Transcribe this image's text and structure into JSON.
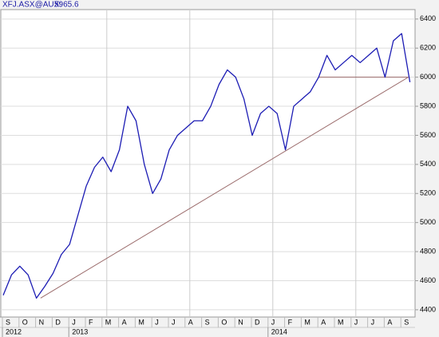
{
  "chart_data": {
    "type": "line",
    "title": "XFJ.ASX@AUX:",
    "categories": [
      "S",
      null,
      "O",
      null,
      "N",
      null,
      "D",
      null,
      "J",
      null,
      "F",
      null,
      "M",
      null,
      "A",
      null,
      "M",
      null,
      "J",
      null,
      "J",
      null,
      "A",
      null,
      "S",
      null,
      "O",
      null,
      "N",
      null,
      "D",
      null,
      "J",
      null,
      "F",
      null,
      "M",
      null,
      "A",
      null,
      "M",
      null,
      "J",
      null,
      "J",
      null,
      "A",
      null,
      "S",
      null
    ],
    "year_labels": [
      {
        "label": "2012",
        "category": 0
      },
      {
        "label": "2013",
        "category": 8
      },
      {
        "label": "2014",
        "category": 32
      }
    ],
    "color": "#1c1cb4",
    "values": [
      4500,
      4640,
      4700,
      4640,
      4480,
      4560,
      4650,
      4780,
      4850,
      5050,
      5250,
      5380,
      5450,
      5350,
      5500,
      5800,
      5700,
      5400,
      5200,
      5300,
      5500,
      5600,
      5650,
      5700,
      5700,
      5800,
      5950,
      6050,
      6000,
      5850,
      5600,
      5750,
      5800,
      5750,
      5500,
      5800,
      5850,
      5900,
      6000,
      6150,
      6050,
      6100,
      6150,
      6100,
      6150,
      6200,
      6000,
      6250,
      6300,
      5965.6
    ],
    "trendlines": [
      {
        "from": [
          4.5,
          4480
        ],
        "to": [
          48.8,
          6000
        ],
        "color": "#9a6a6a"
      },
      {
        "from": [
          38,
          6000
        ],
        "to": [
          48.8,
          6000
        ],
        "color": "#9a6a6a"
      }
    ],
    "ylim": [
      4350,
      6465
    ],
    "yticks": [
      4400,
      4600,
      4800,
      5000,
      5200,
      5400,
      5600,
      5800,
      6000,
      6200,
      6400
    ],
    "grid": true
  }
}
